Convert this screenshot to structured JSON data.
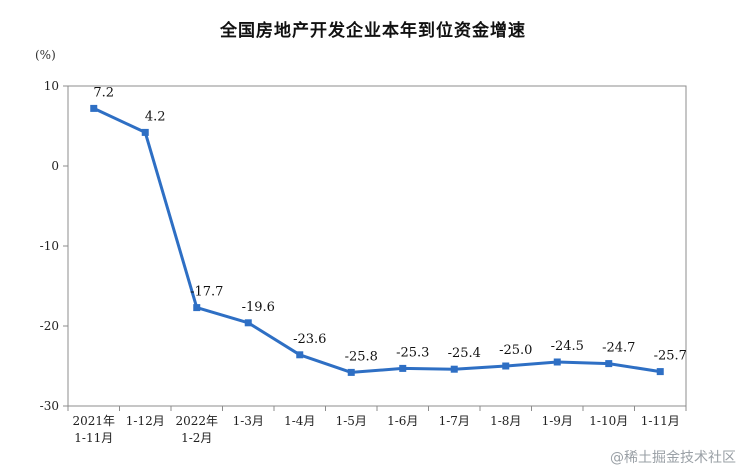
{
  "chart_data": {
    "type": "line",
    "title": "全国房地产开发企业本年到位资金增速",
    "unit_label": "(%)",
    "ylim": [
      -30,
      10
    ],
    "yticks": [
      10,
      0,
      -10,
      -20,
      -30
    ],
    "grid": false,
    "categories": [
      [
        "2021年",
        "1-11月"
      ],
      [
        "1-12月"
      ],
      [
        "2022年",
        "1-2月"
      ],
      [
        "1-3月"
      ],
      [
        "1-4月"
      ],
      [
        "1-5月"
      ],
      [
        "1-6月"
      ],
      [
        "1-7月"
      ],
      [
        "1-8月"
      ],
      [
        "1-9月"
      ],
      [
        "1-10月"
      ],
      [
        "1-11月"
      ]
    ],
    "series": [
      {
        "values": [
          7.2,
          4.2,
          -17.7,
          -19.6,
          -23.6,
          -25.8,
          -25.3,
          -25.4,
          -25.0,
          -24.5,
          -24.7,
          -25.7
        ],
        "labels": [
          "7.2",
          "4.2",
          "-17.7",
          "-19.6",
          "-23.6",
          "-25.8",
          "-25.3",
          "-25.4",
          "-25.0",
          "-24.5",
          "-24.7",
          "-25.7"
        ],
        "color": "#2e6fc4"
      }
    ]
  },
  "watermark": "@稀土掘金技术社区"
}
